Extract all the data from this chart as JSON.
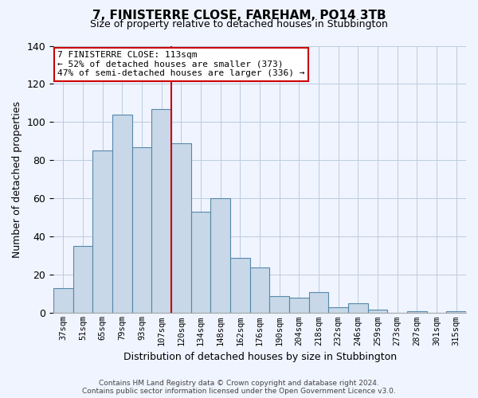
{
  "title": "7, FINISTERRE CLOSE, FAREHAM, PO14 3TB",
  "subtitle": "Size of property relative to detached houses in Stubbington",
  "xlabel": "Distribution of detached houses by size in Stubbington",
  "ylabel": "Number of detached properties",
  "categories": [
    "37sqm",
    "51sqm",
    "65sqm",
    "79sqm",
    "93sqm",
    "107sqm",
    "120sqm",
    "134sqm",
    "148sqm",
    "162sqm",
    "176sqm",
    "190sqm",
    "204sqm",
    "218sqm",
    "232sqm",
    "246sqm",
    "259sqm",
    "273sqm",
    "287sqm",
    "301sqm",
    "315sqm"
  ],
  "values": [
    13,
    35,
    85,
    104,
    87,
    107,
    89,
    53,
    60,
    29,
    24,
    9,
    8,
    11,
    3,
    5,
    2,
    0,
    1,
    0,
    1
  ],
  "bar_color": "#c8d8e8",
  "bar_edge_color": "#5588aa",
  "vline_x_index": 6,
  "vline_color": "#cc0000",
  "annotation_title": "7 FINISTERRE CLOSE: 113sqm",
  "annotation_line1": "← 52% of detached houses are smaller (373)",
  "annotation_line2": "47% of semi-detached houses are larger (336) →",
  "annotation_box_color": "#ffffff",
  "annotation_box_edge": "#cc0000",
  "ylim": [
    0,
    140
  ],
  "yticks": [
    0,
    20,
    40,
    60,
    80,
    100,
    120,
    140
  ],
  "footer1": "Contains HM Land Registry data © Crown copyright and database right 2024.",
  "footer2": "Contains public sector information licensed under the Open Government Licence v3.0.",
  "background_color": "#f0f4ff"
}
